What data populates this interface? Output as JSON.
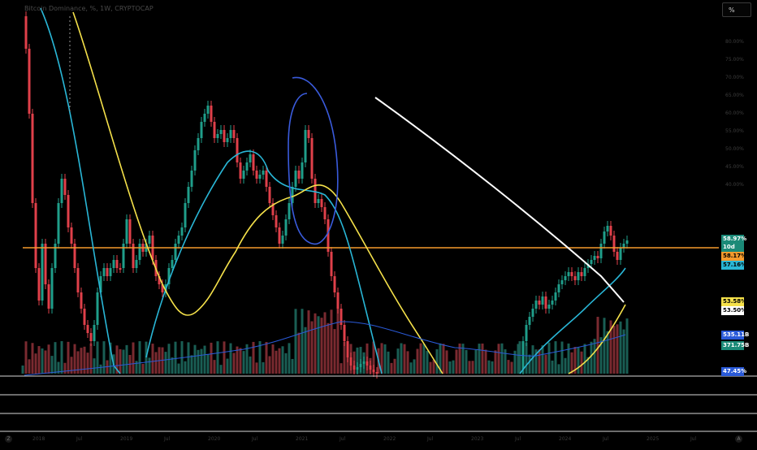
{
  "header": {
    "symbol_line": "Bitcoin Dominance, %, 1W, CRYPTOCAP"
  },
  "toolbar": {
    "scale_label": "%"
  },
  "price_tags": [
    {
      "label": "58.97%",
      "bg": "#1b8a78",
      "fg": "#ffffff"
    },
    {
      "label": "10d 9h",
      "bg": "#1b8a78",
      "fg": "#ffffff"
    },
    {
      "label": "58.17%",
      "bg": "#f59a2c",
      "fg": "#000000"
    },
    {
      "label": "57.16%",
      "bg": "#29b6d6",
      "fg": "#000000"
    },
    {
      "label": "53.58%",
      "bg": "#f5e14a",
      "fg": "#000000"
    },
    {
      "label": "53.50%",
      "bg": "#ffffff",
      "fg": "#000000"
    },
    {
      "label": "535.11B",
      "bg": "#2a5ad8",
      "fg": "#ffffff"
    },
    {
      "label": "371.75B",
      "bg": "#1b8a78",
      "fg": "#ffffff"
    },
    {
      "label": "47.45%",
      "bg": "#2a5ad8",
      "fg": "#ffffff"
    }
  ],
  "price_axis": [
    "80.00%",
    "75.00%",
    "70.00%",
    "65.00%",
    "60.00%",
    "55.00%",
    "50.00%",
    "45.00%",
    "40.00%"
  ],
  "time_axis": [
    "2018",
    "Jul",
    "2019",
    "Jul",
    "2020",
    "Jul",
    "2021",
    "Jul",
    "2022",
    "Jul",
    "2023",
    "Jul",
    "2024",
    "Jul",
    "2025",
    "Jul"
  ],
  "colors": {
    "up": "#1f9e8a",
    "down": "#e0404a",
    "sma_cyan": "#29b6d6",
    "sma_yellow": "#f5e14a",
    "hline": "#f59a2c",
    "drawing_blue": "#3a5bdc",
    "drawing_white": "#ffffff"
  },
  "corner_buttons": {
    "left": "Z",
    "right": "A"
  }
}
